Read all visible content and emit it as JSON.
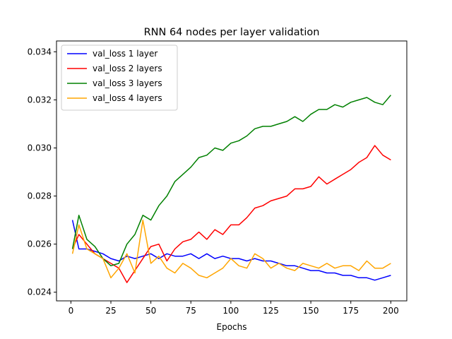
{
  "chart_data": {
    "type": "line",
    "title": "RNN 64 nodes per layer validation",
    "xlabel": "Epochs",
    "ylabel": "",
    "xlim": [
      -9,
      210
    ],
    "ylim": [
      0.02364,
      0.03445
    ],
    "xticks": [
      0,
      25,
      50,
      75,
      100,
      125,
      150,
      175,
      200
    ],
    "xtick_labels": [
      "0",
      "25",
      "50",
      "75",
      "100",
      "125",
      "150",
      "175",
      "200"
    ],
    "yticks": [
      0.024,
      0.026,
      0.028,
      0.03,
      0.032,
      0.034
    ],
    "ytick_labels": [
      "0.024",
      "0.026",
      "0.028",
      "0.030",
      "0.032",
      "0.034"
    ],
    "grid": false,
    "legend_position": "top-left",
    "series": [
      {
        "name": "val_loss 1 layer",
        "color": "#0000ff",
        "x": [
          1,
          5,
          10,
          15,
          20,
          25,
          30,
          35,
          40,
          45,
          50,
          55,
          60,
          65,
          70,
          75,
          80,
          85,
          90,
          95,
          100,
          105,
          110,
          115,
          120,
          125,
          130,
          135,
          140,
          145,
          150,
          155,
          160,
          165,
          170,
          175,
          180,
          185,
          190,
          195,
          200
        ],
        "values": [
          0.027,
          0.0258,
          0.0258,
          0.0257,
          0.0256,
          0.0254,
          0.0253,
          0.0255,
          0.0254,
          0.0255,
          0.0256,
          0.0254,
          0.0256,
          0.0255,
          0.0255,
          0.0256,
          0.0254,
          0.0256,
          0.0254,
          0.0255,
          0.0254,
          0.0254,
          0.0253,
          0.0254,
          0.0253,
          0.0253,
          0.0252,
          0.0251,
          0.0251,
          0.025,
          0.0249,
          0.0249,
          0.0248,
          0.0248,
          0.0247,
          0.0247,
          0.0246,
          0.0246,
          0.0245,
          0.0246,
          0.0247
        ]
      },
      {
        "name": "val_loss 2 layers",
        "color": "#ff0000",
        "x": [
          1,
          5,
          10,
          15,
          20,
          25,
          30,
          35,
          40,
          45,
          50,
          55,
          60,
          65,
          70,
          75,
          80,
          85,
          90,
          95,
          100,
          105,
          110,
          115,
          120,
          125,
          130,
          135,
          140,
          145,
          150,
          155,
          160,
          165,
          170,
          175,
          180,
          185,
          190,
          195,
          200
        ],
        "values": [
          0.0258,
          0.0264,
          0.026,
          0.0256,
          0.0254,
          0.0252,
          0.025,
          0.0244,
          0.0249,
          0.0254,
          0.0259,
          0.026,
          0.0253,
          0.0258,
          0.0261,
          0.0262,
          0.0265,
          0.0262,
          0.0266,
          0.0264,
          0.0268,
          0.0268,
          0.0271,
          0.0275,
          0.0276,
          0.0278,
          0.0279,
          0.028,
          0.0283,
          0.0283,
          0.0284,
          0.0288,
          0.0285,
          0.0287,
          0.0289,
          0.0291,
          0.0294,
          0.0296,
          0.0301,
          0.0297,
          0.0295
        ]
      },
      {
        "name": "val_loss 3 layers",
        "color": "#008000",
        "x": [
          1,
          5,
          10,
          15,
          20,
          25,
          30,
          35,
          40,
          45,
          50,
          55,
          60,
          65,
          70,
          75,
          80,
          85,
          90,
          95,
          100,
          105,
          110,
          115,
          120,
          125,
          130,
          135,
          140,
          145,
          150,
          155,
          160,
          165,
          170,
          175,
          180,
          185,
          190,
          195,
          200
        ],
        "values": [
          0.0258,
          0.0272,
          0.0262,
          0.0259,
          0.0254,
          0.0251,
          0.0252,
          0.026,
          0.0264,
          0.0272,
          0.027,
          0.0276,
          0.028,
          0.0286,
          0.0289,
          0.0292,
          0.0296,
          0.0297,
          0.03,
          0.0299,
          0.0302,
          0.0303,
          0.0305,
          0.0308,
          0.0309,
          0.0309,
          0.031,
          0.0311,
          0.0313,
          0.0311,
          0.0314,
          0.0316,
          0.0316,
          0.0318,
          0.0317,
          0.0319,
          0.032,
          0.0321,
          0.0319,
          0.0318,
          0.0322
        ]
      },
      {
        "name": "val_loss 4 layers",
        "color": "#ffa500",
        "x": [
          1,
          5,
          10,
          15,
          20,
          25,
          30,
          35,
          40,
          45,
          50,
          55,
          60,
          65,
          70,
          75,
          80,
          85,
          90,
          95,
          100,
          105,
          110,
          115,
          120,
          125,
          130,
          135,
          140,
          145,
          150,
          155,
          160,
          165,
          170,
          175,
          180,
          185,
          190,
          195,
          200
        ],
        "values": [
          0.0256,
          0.0268,
          0.0258,
          0.0256,
          0.0254,
          0.0246,
          0.025,
          0.0256,
          0.0248,
          0.027,
          0.0252,
          0.0255,
          0.025,
          0.0248,
          0.0252,
          0.025,
          0.0247,
          0.0246,
          0.0248,
          0.025,
          0.0254,
          0.0251,
          0.025,
          0.0256,
          0.0254,
          0.025,
          0.0252,
          0.025,
          0.0249,
          0.0252,
          0.0251,
          0.025,
          0.0252,
          0.025,
          0.0251,
          0.0251,
          0.0249,
          0.0253,
          0.025,
          0.025,
          0.0252
        ]
      }
    ]
  }
}
